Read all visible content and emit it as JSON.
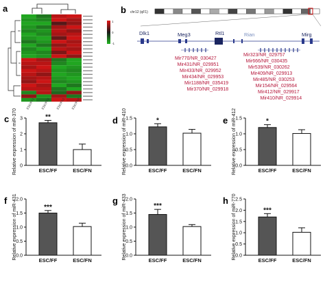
{
  "panel_letters": [
    "a",
    "b",
    "c",
    "d",
    "e",
    "f",
    "g",
    "h"
  ],
  "colors": {
    "heat_high": "#e01414",
    "heat_low": "#22b522",
    "heat_mid": "#1a1a1a",
    "mir_text": "#b5163a",
    "bar_dark": "#555555",
    "bar_light": "#ffffff",
    "gene_blue": "#2a3a8c",
    "rian_text": "#7a8fbf"
  },
  "heatmap": {
    "samples": [
      "ESC/FF1",
      "ESC/FF2",
      "ESC/FN1",
      "ESC/FN2"
    ],
    "legend_ticks": [
      "1",
      "0",
      "-1"
    ],
    "rows": [
      [
        -0.9,
        -0.6,
        0.8,
        0.9
      ],
      [
        -0.8,
        -0.7,
        0.9,
        0.7
      ],
      [
        -0.9,
        -0.9,
        0.3,
        0.6
      ],
      [
        -0.8,
        -0.6,
        0.7,
        0.9
      ],
      [
        -0.7,
        -0.8,
        0.8,
        0.6
      ],
      [
        -0.9,
        -0.7,
        0.7,
        0.8
      ],
      [
        -0.8,
        -0.9,
        0.4,
        0.9
      ],
      [
        -0.6,
        -0.8,
        0.9,
        0.7
      ],
      [
        -0.9,
        -0.6,
        0.6,
        0.8
      ],
      [
        -0.7,
        -0.9,
        0.8,
        0.7
      ],
      [
        -0.8,
        -0.7,
        0.5,
        0.9
      ],
      [
        -0.9,
        -0.8,
        0.9,
        0.6
      ],
      [
        0.9,
        0.7,
        -0.6,
        -0.9
      ],
      [
        0.8,
        0.8,
        -0.7,
        -0.9
      ],
      [
        0.7,
        0.9,
        -0.9,
        -0.8
      ],
      [
        0.9,
        0.8,
        -0.8,
        -0.7
      ],
      [
        0.8,
        0.6,
        -0.9,
        -0.8
      ],
      [
        0.7,
        0.8,
        -0.8,
        -0.9
      ],
      [
        0.6,
        0.9,
        -0.7,
        -0.8
      ],
      [
        0.9,
        0.7,
        -0.9,
        -0.6
      ],
      [
        0.8,
        0.8,
        -0.6,
        -0.9
      ],
      [
        -0.7,
        0.8,
        -0.5,
        0.6
      ],
      [
        0.6,
        -0.8,
        0.7,
        -0.6
      ],
      [
        -0.8,
        -0.6,
        0.9,
        0.8
      ]
    ]
  },
  "locus": {
    "chrom_label": "chr12 (qF1)",
    "genes": [
      "Dlk1",
      "Meg3",
      "Rtl1",
      "Rian",
      "Mirg"
    ],
    "mirs_left": [
      "Mir770/NR_030427",
      "Mir431/NR_029951",
      "Mir433/NR_029952",
      "Mir434/NR_029953",
      "Mir1188/NR_035419",
      "Mir370/NR_029918"
    ],
    "mirs_right": [
      "Mir323/NR_029757",
      "Mir666/NR_030435",
      "Mir539/NR_030262",
      "Mir409/NR_029913",
      "Mir485/NR_030253",
      "Mir154/NR_029564",
      "Mir412/NR_029917",
      "Mir410/NR_029914"
    ]
  },
  "chart_data": [
    {
      "panel": "c",
      "type": "bar",
      "categories": [
        "ESC/FF",
        "ESC/FN"
      ],
      "values": [
        2.7,
        1.0
      ],
      "errors": [
        0.15,
        0.35
      ],
      "ylabel": "Relative expression of miR-370",
      "ylim": [
        0,
        3
      ],
      "yticks": [
        "0",
        "1",
        "2",
        "3"
      ],
      "significance": "**"
    },
    {
      "panel": "d",
      "type": "bar",
      "categories": [
        "ESC/FF",
        "ESC/FN"
      ],
      "values": [
        1.22,
        1.02
      ],
      "errors": [
        0.1,
        0.12
      ],
      "ylabel": "Relative expression of miR-410",
      "ylim": [
        0,
        1.5
      ],
      "yticks": [
        "0.0",
        "0.5",
        "1.0",
        "1.5"
      ],
      "significance": "*"
    },
    {
      "panel": "e",
      "type": "bar",
      "categories": [
        "ESC/FF",
        "ESC/FN"
      ],
      "values": [
        1.2,
        1.01
      ],
      "errors": [
        0.09,
        0.12
      ],
      "ylabel": "Relative expression of miR-412",
      "ylim": [
        0,
        1.5
      ],
      "yticks": [
        "0.0",
        "0.5",
        "1.0",
        "1.5"
      ],
      "significance": "*"
    },
    {
      "panel": "f",
      "type": "bar",
      "categories": [
        "ESC/FF",
        "ESC/FN"
      ],
      "values": [
        1.5,
        1.02
      ],
      "errors": [
        0.09,
        0.12
      ],
      "ylabel": "Relative expression of miR-431",
      "ylim": [
        0,
        2.0
      ],
      "yticks": [
        "0.0",
        "0.5",
        "1.0",
        "1.5",
        "2.0"
      ],
      "significance": "***"
    },
    {
      "panel": "g",
      "type": "bar",
      "categories": [
        "ESC/FF",
        "ESC/FN"
      ],
      "values": [
        1.45,
        1.02
      ],
      "errors": [
        0.18,
        0.07
      ],
      "ylabel": "Relative expression of miR-433",
      "ylim": [
        0,
        2.0
      ],
      "yticks": [
        "0.0",
        "0.5",
        "1.0",
        "1.5",
        "2.0"
      ],
      "significance": "***"
    },
    {
      "panel": "h",
      "type": "bar",
      "categories": [
        "ESC/FF",
        "ESC/FN"
      ],
      "values": [
        1.7,
        1.02
      ],
      "errors": [
        0.15,
        0.2
      ],
      "ylabel": "Relative expression of miR-770",
      "ylim": [
        0,
        2.5
      ],
      "yticks": [
        "0.0",
        "0.5",
        "1.0",
        "1.5",
        "2.0",
        "2.5"
      ],
      "significance": "***"
    }
  ]
}
